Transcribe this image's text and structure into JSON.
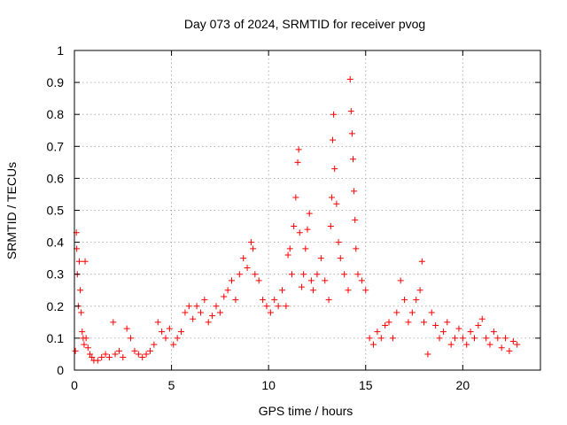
{
  "chart_data": {
    "type": "scatter",
    "title": "Day 073 of 2024, SRMTID for receiver pvog",
    "xlabel": "GPS time / hours",
    "ylabel": "SRMTID / TECUs",
    "xlim": [
      0,
      24
    ],
    "ylim": [
      0,
      1
    ],
    "grid": true,
    "marker": "plus",
    "color": "#ff0000",
    "x_ticks": [
      0,
      5,
      10,
      15,
      20
    ],
    "x_tick_labels": [
      "0",
      "5",
      "10",
      "15",
      "20"
    ],
    "y_ticks": [
      0,
      0.1,
      0.2,
      0.3,
      0.4,
      0.5,
      0.6,
      0.7,
      0.8,
      0.9,
      1
    ],
    "y_tick_labels": [
      "0",
      "0.1",
      "0.2",
      "0.3",
      "0.4",
      "0.5",
      "0.6",
      "0.7",
      "0.8",
      "0.9",
      "1"
    ],
    "series": [
      {
        "name": "SRMTID",
        "points": [
          [
            0.05,
            0.06
          ],
          [
            0.1,
            0.43
          ],
          [
            0.12,
            0.38
          ],
          [
            0.15,
            0.3
          ],
          [
            0.2,
            0.2
          ],
          [
            0.25,
            0.34
          ],
          [
            0.3,
            0.25
          ],
          [
            0.35,
            0.18
          ],
          [
            0.4,
            0.12
          ],
          [
            0.45,
            0.1
          ],
          [
            0.5,
            0.08
          ],
          [
            0.55,
            0.34
          ],
          [
            0.6,
            0.1
          ],
          [
            0.7,
            0.07
          ],
          [
            0.8,
            0.05
          ],
          [
            0.9,
            0.04
          ],
          [
            1.0,
            0.03
          ],
          [
            1.2,
            0.03
          ],
          [
            1.4,
            0.04
          ],
          [
            1.6,
            0.05
          ],
          [
            1.8,
            0.04
          ],
          [
            2.0,
            0.15
          ],
          [
            2.1,
            0.05
          ],
          [
            2.3,
            0.06
          ],
          [
            2.5,
            0.04
          ],
          [
            2.7,
            0.13
          ],
          [
            2.9,
            0.1
          ],
          [
            3.1,
            0.06
          ],
          [
            3.3,
            0.05
          ],
          [
            3.5,
            0.04
          ],
          [
            3.7,
            0.05
          ],
          [
            3.9,
            0.06
          ],
          [
            4.1,
            0.08
          ],
          [
            4.3,
            0.15
          ],
          [
            4.5,
            0.12
          ],
          [
            4.7,
            0.1
          ],
          [
            4.9,
            0.13
          ],
          [
            5.1,
            0.08
          ],
          [
            5.3,
            0.1
          ],
          [
            5.5,
            0.12
          ],
          [
            5.7,
            0.18
          ],
          [
            5.9,
            0.2
          ],
          [
            6.1,
            0.16
          ],
          [
            6.3,
            0.2
          ],
          [
            6.5,
            0.18
          ],
          [
            6.7,
            0.22
          ],
          [
            6.9,
            0.15
          ],
          [
            7.1,
            0.17
          ],
          [
            7.3,
            0.2
          ],
          [
            7.5,
            0.18
          ],
          [
            7.7,
            0.23
          ],
          [
            7.9,
            0.25
          ],
          [
            8.1,
            0.28
          ],
          [
            8.3,
            0.22
          ],
          [
            8.5,
            0.3
          ],
          [
            8.7,
            0.35
          ],
          [
            8.9,
            0.32
          ],
          [
            9.1,
            0.4
          ],
          [
            9.2,
            0.38
          ],
          [
            9.3,
            0.3
          ],
          [
            9.5,
            0.28
          ],
          [
            9.7,
            0.22
          ],
          [
            9.9,
            0.2
          ],
          [
            10.1,
            0.18
          ],
          [
            10.3,
            0.22
          ],
          [
            10.5,
            0.2
          ],
          [
            10.7,
            0.25
          ],
          [
            10.9,
            0.2
          ],
          [
            11.0,
            0.36
          ],
          [
            11.1,
            0.38
          ],
          [
            11.2,
            0.3
          ],
          [
            11.3,
            0.45
          ],
          [
            11.4,
            0.54
          ],
          [
            11.5,
            0.65
          ],
          [
            11.55,
            0.69
          ],
          [
            11.6,
            0.43
          ],
          [
            11.7,
            0.26
          ],
          [
            11.8,
            0.3
          ],
          [
            11.9,
            0.38
          ],
          [
            12.0,
            0.44
          ],
          [
            12.1,
            0.49
          ],
          [
            12.2,
            0.28
          ],
          [
            12.3,
            0.25
          ],
          [
            12.5,
            0.3
          ],
          [
            12.7,
            0.35
          ],
          [
            12.9,
            0.28
          ],
          [
            13.1,
            0.22
          ],
          [
            13.2,
            0.45
          ],
          [
            13.25,
            0.54
          ],
          [
            13.3,
            0.72
          ],
          [
            13.35,
            0.8
          ],
          [
            13.4,
            0.63
          ],
          [
            13.5,
            0.52
          ],
          [
            13.6,
            0.4
          ],
          [
            13.7,
            0.35
          ],
          [
            13.9,
            0.3
          ],
          [
            14.1,
            0.25
          ],
          [
            14.2,
            0.91
          ],
          [
            14.25,
            0.81
          ],
          [
            14.3,
            0.74
          ],
          [
            14.35,
            0.66
          ],
          [
            14.4,
            0.56
          ],
          [
            14.45,
            0.47
          ],
          [
            14.5,
            0.38
          ],
          [
            14.6,
            0.3
          ],
          [
            14.8,
            0.28
          ],
          [
            15.0,
            0.25
          ],
          [
            15.2,
            0.1
          ],
          [
            15.4,
            0.08
          ],
          [
            15.6,
            0.12
          ],
          [
            15.8,
            0.1
          ],
          [
            16.0,
            0.14
          ],
          [
            16.2,
            0.15
          ],
          [
            16.4,
            0.1
          ],
          [
            16.6,
            0.18
          ],
          [
            16.8,
            0.28
          ],
          [
            17.0,
            0.22
          ],
          [
            17.2,
            0.15
          ],
          [
            17.4,
            0.18
          ],
          [
            17.6,
            0.22
          ],
          [
            17.8,
            0.25
          ],
          [
            17.9,
            0.34
          ],
          [
            18.0,
            0.15
          ],
          [
            18.2,
            0.05
          ],
          [
            18.4,
            0.18
          ],
          [
            18.6,
            0.14
          ],
          [
            18.8,
            0.1
          ],
          [
            19.0,
            0.12
          ],
          [
            19.2,
            0.15
          ],
          [
            19.4,
            0.08
          ],
          [
            19.6,
            0.1
          ],
          [
            19.8,
            0.13
          ],
          [
            20.0,
            0.1
          ],
          [
            20.2,
            0.08
          ],
          [
            20.4,
            0.12
          ],
          [
            20.6,
            0.1
          ],
          [
            20.8,
            0.14
          ],
          [
            21.0,
            0.16
          ],
          [
            21.2,
            0.1
          ],
          [
            21.4,
            0.08
          ],
          [
            21.6,
            0.12
          ],
          [
            21.8,
            0.1
          ],
          [
            22.0,
            0.07
          ],
          [
            22.2,
            0.1
          ],
          [
            22.4,
            0.06
          ],
          [
            22.6,
            0.09
          ],
          [
            22.8,
            0.08
          ]
        ]
      }
    ]
  }
}
